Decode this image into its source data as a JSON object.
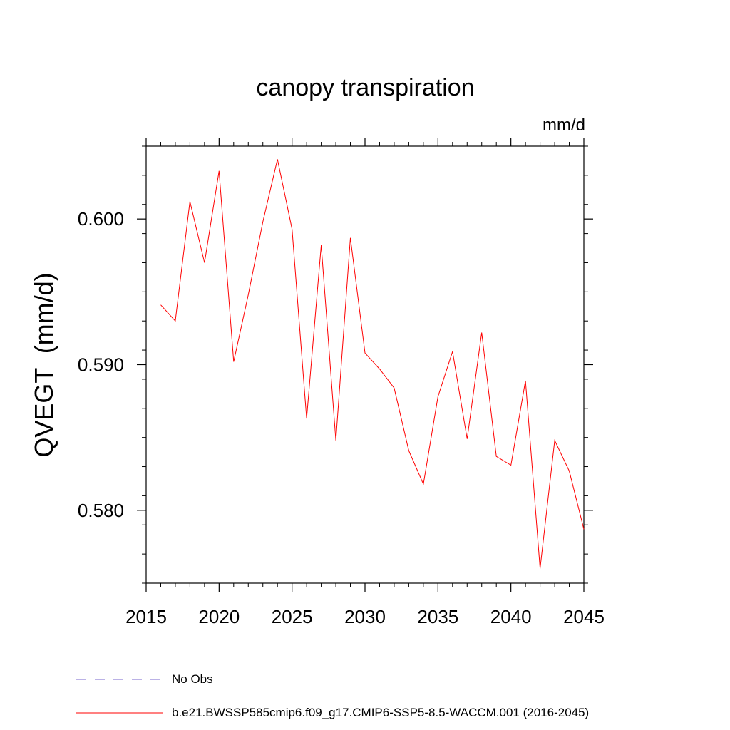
{
  "title": "canopy transpiration",
  "units_label": "mm/d",
  "ylabel": "QVEGT  (mm/d)",
  "legend": [
    {
      "label": "No Obs",
      "style": "dashed",
      "color": "#7766cc"
    },
    {
      "label": "b.e21.BWSSP585cmip6.f09_g17.CMIP6-SSP5-8.5-WACCM.001 (2016-2045)",
      "style": "solid",
      "color": "#ff0000"
    }
  ],
  "chart_data": {
    "type": "line",
    "title": "canopy transpiration",
    "ylabel": "QVEGT  (mm/d)",
    "xlim": [
      2015,
      2045
    ],
    "ylim": [
      0.575,
      0.605
    ],
    "xticks": [
      2015,
      2020,
      2025,
      2030,
      2035,
      2040,
      2045
    ],
    "ytick_labels": [
      "0.580",
      "0.590",
      "0.600"
    ],
    "ytick_values": [
      0.58,
      0.59,
      0.6
    ],
    "grid": false,
    "legend_position": "bottom",
    "series": [
      {
        "name": "b.e21.BWSSP585cmip6.f09_g17.CMIP6-SSP5-8.5-WACCM.001 (2016-2045)",
        "color": "#ff0000",
        "x": [
          2016,
          2017,
          2018,
          2019,
          2020,
          2021,
          2022,
          2023,
          2024,
          2025,
          2026,
          2027,
          2028,
          2029,
          2030,
          2031,
          2032,
          2033,
          2034,
          2035,
          2036,
          2037,
          2038,
          2039,
          2040,
          2041,
          2042,
          2043,
          2044,
          2045
        ],
        "y": [
          0.5941,
          0.593,
          0.6012,
          0.597,
          0.6033,
          0.5902,
          0.5948,
          0.5998,
          0.6041,
          0.5993,
          0.5863,
          0.5982,
          0.5848,
          0.5987,
          0.5908,
          0.5897,
          0.5884,
          0.5841,
          0.5818,
          0.5878,
          0.5909,
          0.5849,
          0.5922,
          0.5837,
          0.5831,
          0.5889,
          0.576,
          0.5848,
          0.5827,
          0.5787
        ]
      }
    ]
  }
}
